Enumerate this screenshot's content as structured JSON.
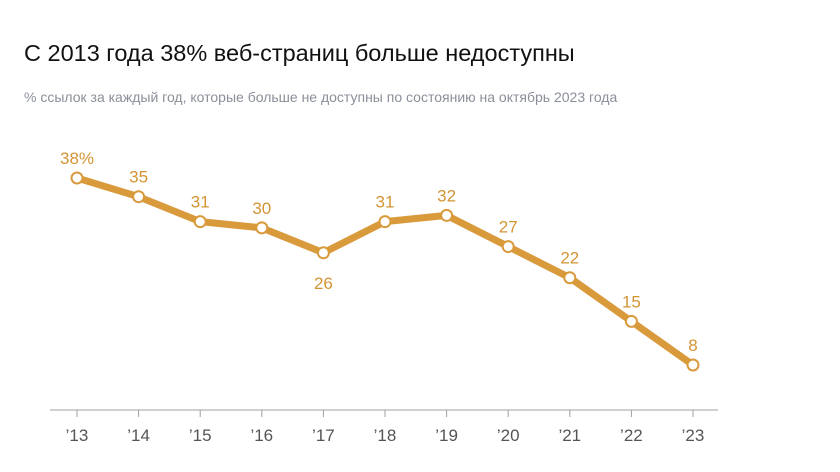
{
  "chart_data": {
    "type": "line",
    "title": "С 2013 года 38% веб-страниц больше недоступны",
    "subtitle": "% ссылок за каждый год, которые больше не доступны по состоянию на октябрь 2023 года",
    "categories": [
      "’13",
      "’14",
      "’15",
      "’16",
      "’17",
      "’18",
      "’19",
      "’20",
      "’21",
      "’22",
      "’23"
    ],
    "values": [
      38,
      35,
      31,
      30,
      26,
      31,
      32,
      27,
      22,
      15,
      8
    ],
    "data_labels": [
      "38%",
      "35",
      "31",
      "30",
      "26",
      "31",
      "32",
      "27",
      "22",
      "15",
      "8"
    ],
    "label_position": [
      "above",
      "above",
      "above",
      "above",
      "below",
      "above",
      "above",
      "above",
      "above",
      "above",
      "above"
    ],
    "xlabel": "",
    "ylabel": "",
    "ylim": [
      0,
      40
    ],
    "grid": false,
    "colors": {
      "line": "#d99a3c",
      "label": "#d39434",
      "axis": "#a0a0a0",
      "tick_label": "#555555",
      "marker_fill": "#ffffff"
    }
  }
}
